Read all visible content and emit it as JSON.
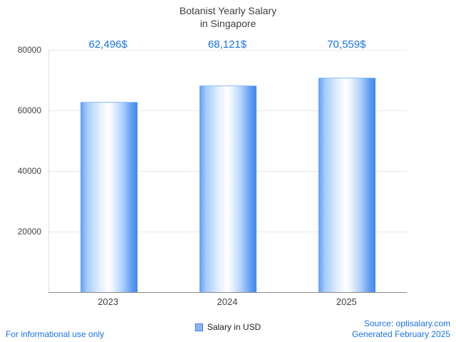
{
  "title": {
    "line1": "Botanist Yearly Salary",
    "line2": "in Singapore"
  },
  "chart_data": {
    "type": "bar",
    "title": "Botanist Yearly Salary in Singapore",
    "categories": [
      "2023",
      "2024",
      "2025"
    ],
    "values": [
      62496,
      68121,
      70559
    ],
    "value_labels": [
      "62,496$",
      "68,121$",
      "70,559$"
    ],
    "xlabel": "",
    "ylabel": "",
    "ylim": [
      0,
      80000
    ],
    "ytick_step": 20000,
    "grid": true,
    "legend": {
      "label": "Salary in USD",
      "position": "bottom"
    },
    "bar_color": "#4d90fe",
    "value_label_color": "#1a73e8"
  },
  "footer": {
    "left": "For informational use only",
    "source": "Source: optisalary.com",
    "generated": "Generated February 2025"
  }
}
